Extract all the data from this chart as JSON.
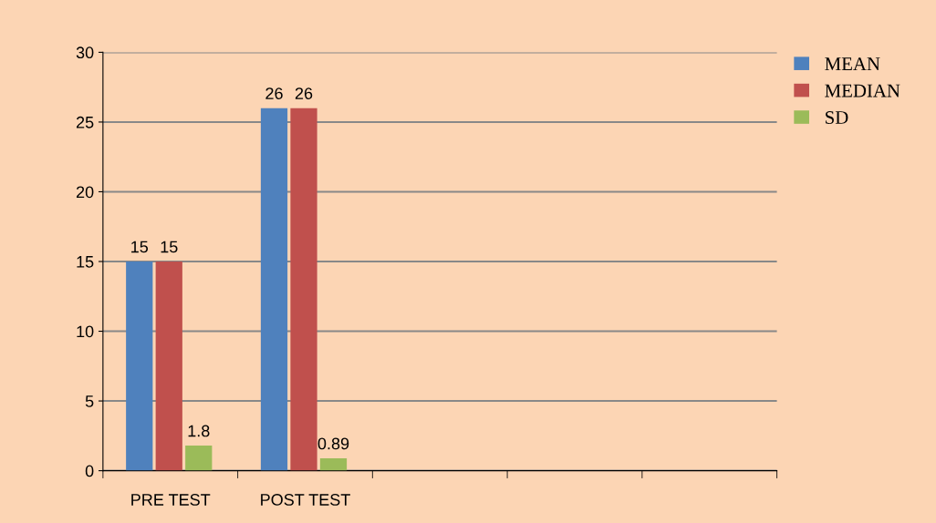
{
  "chart_data": {
    "type": "bar",
    "categories": [
      "PRE TEST",
      "POST TEST",
      null,
      null,
      null
    ],
    "series": [
      {
        "name": "MEAN",
        "color": "#4f81bd",
        "values": [
          15,
          26,
          null,
          null,
          null
        ]
      },
      {
        "name": "MEDIAN",
        "color": "#c0504d",
        "values": [
          15,
          26,
          null,
          null,
          null
        ]
      },
      {
        "name": "SD",
        "color": "#9bbb59",
        "values": [
          1.8,
          0.89,
          null,
          null,
          null
        ]
      }
    ],
    "ylim": [
      0,
      30
    ],
    "yticks": [
      0,
      5,
      10,
      15,
      20,
      25,
      30
    ],
    "grid": "y",
    "legend": "top right",
    "data_labels": true
  }
}
